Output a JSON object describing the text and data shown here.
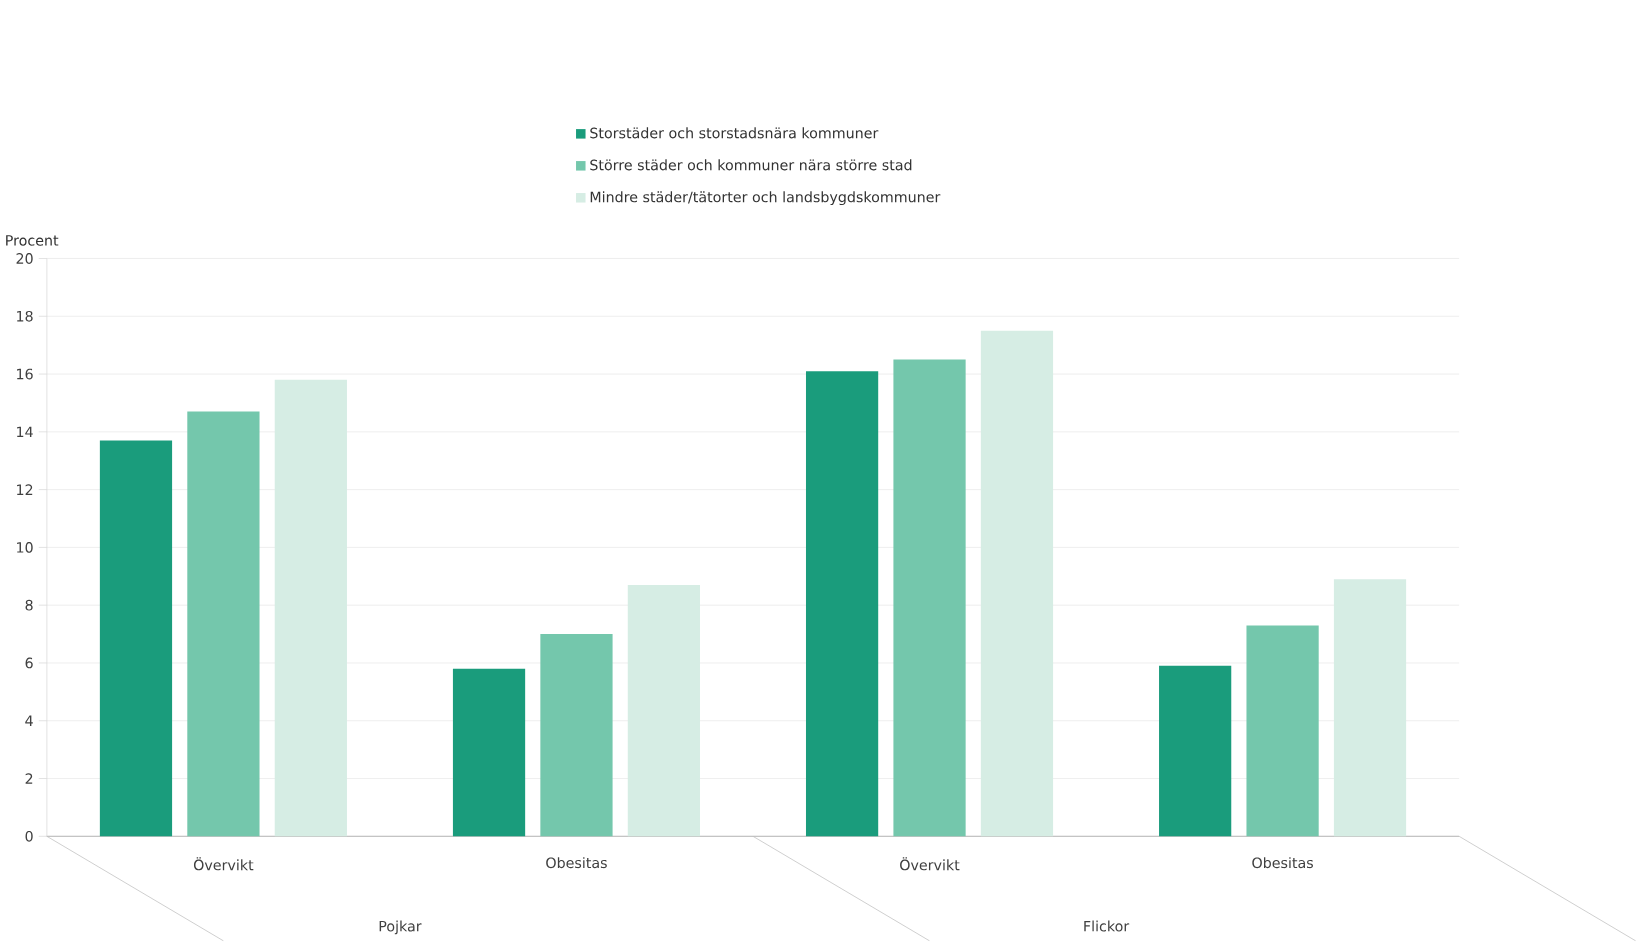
{
  "chart_data": {
    "type": "bar",
    "ylabel": "Procent",
    "categories": [
      "Övervikt",
      "Obesitas",
      "Övervikt",
      "Obesitas"
    ],
    "series": [
      {
        "name": "Storstäder och storstadsnära kommuner",
        "color": "#1a9c7c",
        "values": [
          13.7,
          5.8,
          16.1,
          5.9
        ]
      },
      {
        "name": "Större städer och kommuner nära större stad",
        "color": "#74c7ac",
        "values": [
          14.7,
          7.0,
          16.5,
          7.3
        ]
      },
      {
        "name": "Mindre städer/tätorter och landsbygdskommuner",
        "color": "#d6ede4",
        "values": [
          15.8,
          8.7,
          17.5,
          8.9
        ]
      }
    ],
    "annotations": [
      "Pojkar",
      "Flickor"
    ],
    "ylim": [
      0,
      20
    ],
    "yticks": [
      0,
      2,
      4,
      6,
      8,
      10,
      12,
      14,
      16,
      18,
      20
    ],
    "grid": "y",
    "legend": "top"
  }
}
